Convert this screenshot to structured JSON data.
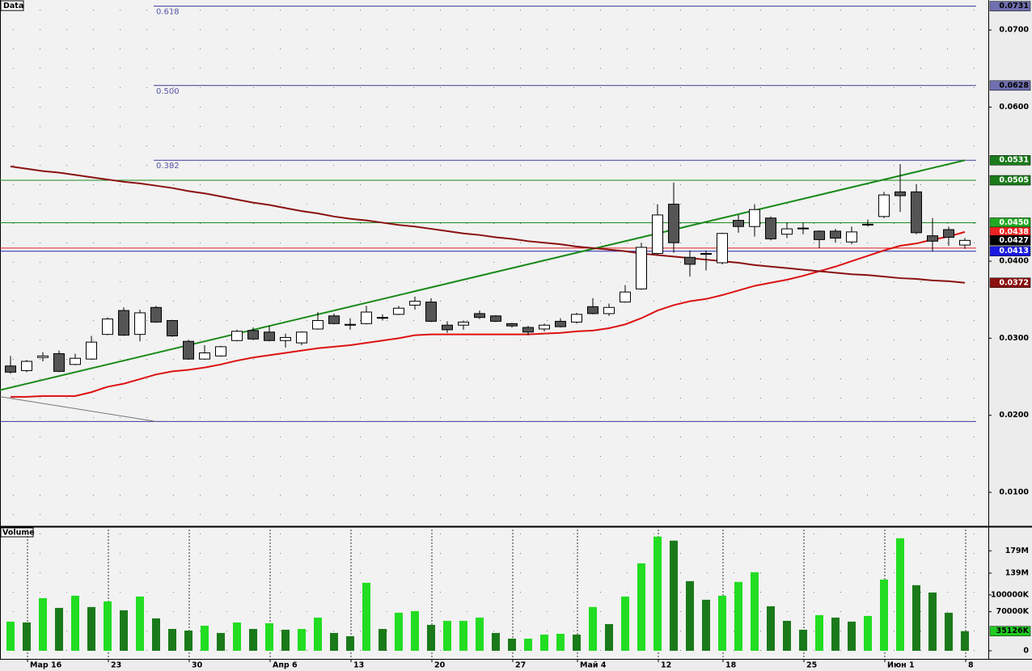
{
  "chart_data": [
    {
      "type": "candlestick",
      "title": "Data",
      "categories": [
        null,
        "Мар 16",
        null,
        null,
        null,
        null,
        "23",
        null,
        null,
        null,
        null,
        "30",
        null,
        null,
        null,
        null,
        "Апр 6",
        null,
        null,
        null,
        null,
        "13",
        null,
        null,
        null,
        null,
        "20",
        null,
        null,
        null,
        null,
        "27",
        null,
        null,
        null,
        "Май 4",
        null,
        null,
        null,
        null,
        "12",
        null,
        null,
        null,
        "18",
        null,
        null,
        null,
        null,
        "25",
        null,
        null,
        null,
        null,
        "Июн 1",
        null,
        null,
        null,
        null,
        "8"
      ],
      "open": [
        0.0264,
        0.0258,
        0.0275,
        0.028,
        0.0266,
        0.0273,
        0.0305,
        0.0336,
        0.0305,
        0.034,
        0.0323,
        0.0296,
        0.0273,
        0.0277,
        0.0297,
        0.031,
        0.0308,
        0.0297,
        0.0294,
        0.0312,
        0.0329,
        0.0317,
        0.0319,
        0.0326,
        0.0331,
        0.0343,
        0.0347,
        0.0317,
        0.0317,
        0.0332,
        0.0329,
        0.0319,
        0.0314,
        0.0312,
        0.0322,
        0.0321,
        0.0341,
        0.0332,
        0.0347,
        0.0364,
        0.041,
        0.0474,
        0.0405,
        0.0409,
        0.0398,
        0.0453,
        0.0445,
        0.0456,
        0.0435,
        0.0442,
        0.0439,
        0.0439,
        0.0425,
        0.0447,
        0.0458,
        0.049,
        0.049,
        0.0433,
        0.0441,
        0.0421
      ],
      "high": [
        0.0277,
        0.0272,
        0.0282,
        0.0284,
        0.028,
        0.0303,
        0.0327,
        0.034,
        0.0337,
        0.0342,
        0.0324,
        0.0298,
        0.0291,
        0.029,
        0.0311,
        0.0314,
        0.0316,
        0.0306,
        0.0309,
        0.0334,
        0.0332,
        0.0326,
        0.0342,
        0.0331,
        0.0342,
        0.0354,
        0.0352,
        0.0322,
        0.0323,
        0.0336,
        0.033,
        0.032,
        0.0316,
        0.0319,
        0.0326,
        0.0333,
        0.0352,
        0.0345,
        0.0369,
        0.0424,
        0.0474,
        0.0502,
        0.0414,
        0.0414,
        0.0437,
        0.046,
        0.0474,
        0.0458,
        0.045,
        0.045,
        0.044,
        0.0442,
        0.0445,
        0.0454,
        0.049,
        0.0526,
        0.05,
        0.0456,
        0.0445,
        0.043
      ],
      "low": [
        0.0254,
        0.0256,
        0.027,
        0.0256,
        0.0265,
        0.0272,
        0.0304,
        0.0303,
        0.0296,
        0.032,
        0.0302,
        0.0272,
        0.0272,
        0.0276,
        0.0296,
        0.0298,
        0.0296,
        0.0288,
        0.0291,
        0.0311,
        0.0318,
        0.0311,
        0.0318,
        0.0323,
        0.033,
        0.0337,
        0.0321,
        0.0307,
        0.0311,
        0.0325,
        0.0321,
        0.0314,
        0.0304,
        0.0309,
        0.0314,
        0.0319,
        0.0331,
        0.0329,
        0.0346,
        0.0363,
        0.0409,
        0.0411,
        0.038,
        0.0388,
        0.0396,
        0.0437,
        0.0432,
        0.0427,
        0.043,
        0.0435,
        0.0417,
        0.0424,
        0.0422,
        0.0445,
        0.0456,
        0.0464,
        0.0435,
        0.0413,
        0.042,
        0.0416
      ],
      "close": [
        0.0256,
        0.027,
        0.0277,
        0.0257,
        0.0274,
        0.0295,
        0.0325,
        0.0304,
        0.0333,
        0.0321,
        0.0303,
        0.0273,
        0.0281,
        0.0289,
        0.0309,
        0.0299,
        0.0297,
        0.0301,
        0.0308,
        0.0323,
        0.0319,
        0.0318,
        0.0334,
        0.0327,
        0.0339,
        0.0348,
        0.0322,
        0.0311,
        0.0321,
        0.0327,
        0.0322,
        0.0316,
        0.0308,
        0.0317,
        0.0315,
        0.0331,
        0.0332,
        0.034,
        0.036,
        0.0418,
        0.046,
        0.0424,
        0.0396,
        0.041,
        0.0436,
        0.0445,
        0.0467,
        0.0429,
        0.0442,
        0.0443,
        0.0428,
        0.043,
        0.0438,
        0.0448,
        0.0486,
        0.0485,
        0.0437,
        0.0426,
        0.0431,
        0.0427
      ],
      "up_color": "#ffffff",
      "down_color": "#555555",
      "lines": [
        {
          "color": "#dd1111",
          "values": [
            0.0224,
            0.0224,
            0.0225,
            0.0225,
            0.0225,
            0.023,
            0.0237,
            0.0241,
            0.0247,
            0.0253,
            0.0257,
            0.0259,
            0.0262,
            0.0266,
            0.0271,
            0.0275,
            0.0278,
            0.0281,
            0.0284,
            0.0287,
            0.0289,
            0.0291,
            0.0294,
            0.0297,
            0.03,
            0.0304,
            0.0305,
            0.0305,
            0.0305,
            0.0305,
            0.0305,
            0.0305,
            0.0305,
            0.0306,
            0.0307,
            0.0309,
            0.031,
            0.0313,
            0.0318,
            0.0326,
            0.0336,
            0.0343,
            0.0348,
            0.0351,
            0.0356,
            0.0362,
            0.0368,
            0.0372,
            0.0376,
            0.0381,
            0.0387,
            0.0393,
            0.04,
            0.0407,
            0.0414,
            0.042,
            0.0423,
            0.0428,
            0.0432,
            0.0438
          ]
        },
        {
          "color": "#8b1010",
          "values": [
            0.0523,
            0.052,
            0.0517,
            0.0515,
            0.0512,
            0.0509,
            0.0506,
            0.0503,
            0.0501,
            0.0498,
            0.0495,
            0.0491,
            0.0488,
            0.0484,
            0.048,
            0.0476,
            0.0473,
            0.0469,
            0.0465,
            0.0462,
            0.0458,
            0.0455,
            0.0453,
            0.045,
            0.0447,
            0.0445,
            0.0442,
            0.0439,
            0.0436,
            0.0434,
            0.0431,
            0.0429,
            0.0426,
            0.0424,
            0.0422,
            0.0419,
            0.0417,
            0.0415,
            0.0413,
            0.041,
            0.0408,
            0.0406,
            0.0404,
            0.0402,
            0.04,
            0.0398,
            0.0395,
            0.0393,
            0.0391,
            0.0389,
            0.0387,
            0.0385,
            0.0383,
            0.0382,
            0.038,
            0.0378,
            0.0377,
            0.0375,
            0.0374,
            0.0372
          ]
        }
      ],
      "trend_lines": [
        {
          "color": "#1a8a1a",
          "x": [
            0,
            59
          ],
          "values": [
            0.0236,
            0.0531
          ],
          "extend": "left"
        },
        {
          "color": "#777777",
          "x": [
            0,
            9
          ],
          "values": [
            0.0222,
            0.0192
          ],
          "extend": "left"
        }
      ],
      "levels": [
        {
          "value": 0.0731,
          "label": "0.618",
          "color": "#3a3a9a",
          "x_start": 9
        },
        {
          "value": 0.0628,
          "label": "0.500",
          "color": "#3a3a9a",
          "x_start": 9
        },
        {
          "value": 0.0531,
          "label": "0.382",
          "color": "#3a3a9a",
          "x_start": 9
        },
        {
          "value": 0.0192,
          "color": "#3a3a9a"
        },
        {
          "value": 0.0505,
          "color": "#1a8a1a"
        },
        {
          "value": 0.045,
          "color": "#1a8a1a"
        },
        {
          "value": 0.0417,
          "color": "#dd2222"
        },
        {
          "value": 0.0413,
          "color": "#2222aa"
        }
      ],
      "tags": [
        {
          "value": 0.0731,
          "color": "#7070b0",
          "text_color": "#000000"
        },
        {
          "value": 0.0628,
          "color": "#7070b0",
          "text_color": "#000000"
        },
        {
          "value": 0.0531,
          "color": "#1a7a1a",
          "text_color": "#ffffff"
        },
        {
          "value": 0.0505,
          "color": "#1a7a1a",
          "text_color": "#ffffff"
        },
        {
          "value": 0.045,
          "label": "0.0450",
          "color": "#22aa22",
          "text_color": "#ffffff"
        },
        {
          "value": 0.0438,
          "color": "#ee2222",
          "text_color": "#ffffff"
        },
        {
          "value": 0.0427,
          "color": "#000000",
          "text_color": "#ffffff"
        },
        {
          "value": 0.0413,
          "color": "#1a1ae0",
          "text_color": "#ffffff"
        },
        {
          "value": 0.0372,
          "color": "#8b1010",
          "text_color": "#ffffff"
        }
      ],
      "ylim": [
        0.0057,
        0.0739
      ],
      "yticks": [
        {
          "value": 0.01,
          "label": "0.0100"
        },
        {
          "value": 0.02,
          "label": "0.0200"
        },
        {
          "value": 0.03,
          "label": "0.0300"
        },
        {
          "value": 0.04,
          "label": "0.0400"
        },
        {
          "value": 0.06,
          "label": "0.0600"
        },
        {
          "value": 0.07,
          "label": "0.0700"
        }
      ],
      "grid": "dotted"
    },
    {
      "type": "bar",
      "title": "Volume",
      "values": [
        52200000,
        50700000,
        94200000,
        76800000,
        98600000,
        78300000,
        88400000,
        72500000,
        97100000,
        58000000,
        39100000,
        36200000,
        44900000,
        31900000,
        50700000,
        39100000,
        49300000,
        37700000,
        39100000,
        59400000,
        31900000,
        26100000,
        121700000,
        39100000,
        68100000,
        71000000,
        46400000,
        53600000,
        53600000,
        59400000,
        31900000,
        21700000,
        21700000,
        29000000,
        30400000,
        29000000,
        78300000,
        47800000,
        97100000,
        156500000,
        204300000,
        197100000,
        124600000,
        91300000,
        98600000,
        123200000,
        140600000,
        79700000,
        53600000,
        37700000,
        63800000,
        59400000,
        52200000,
        62300000,
        127500000,
        201400000,
        117400000,
        104300000,
        68100000,
        35126000
      ],
      "up_color": "#22dd22",
      "down_color": "#1a7a1a",
      "tags": [
        {
          "value": 35126000,
          "label": "35126K",
          "color": "#22cc22",
          "text_color": "#000000"
        }
      ],
      "ylim": [
        0,
        217000000
      ],
      "yticks": [
        0,
        {
          "value": 70000000,
          "label": "70000K"
        },
        {
          "value": 100000000,
          "label": "100000K"
        },
        {
          "value": 139000000,
          "label": "139M"
        },
        {
          "value": 179000000,
          "label": "179M"
        }
      ]
    }
  ]
}
